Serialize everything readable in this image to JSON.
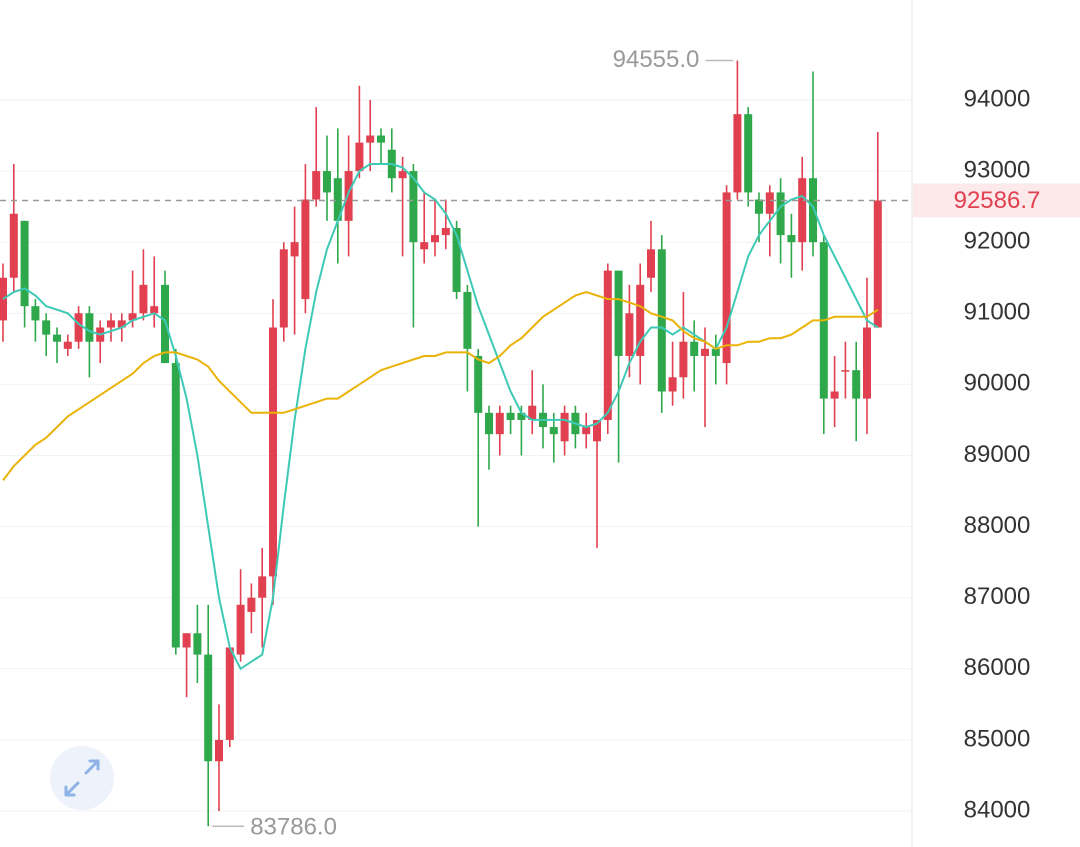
{
  "chart_data": {
    "type": "candlestick",
    "ylim": [
      83494,
      95406
    ],
    "yticks": [
      84000,
      85000,
      86000,
      87000,
      88000,
      89000,
      90000,
      91000,
      92000,
      93000,
      94000
    ],
    "grid": true,
    "up_color": "#e0404f",
    "down_color": "#2ea84a",
    "ohlc": [
      [
        90900,
        91700,
        90600,
        91500
      ],
      [
        91500,
        93100,
        91300,
        92400
      ],
      [
        92300,
        92300,
        90800,
        91100
      ],
      [
        91100,
        91200,
        90600,
        90900
      ],
      [
        90900,
        91000,
        90400,
        90700
      ],
      [
        90700,
        90800,
        90300,
        90600
      ],
      [
        90500,
        90700,
        90400,
        90600
      ],
      [
        90600,
        91100,
        90500,
        91000
      ],
      [
        91000,
        91100,
        90100,
        90600
      ],
      [
        90600,
        90900,
        90300,
        90800
      ],
      [
        90800,
        91000,
        90600,
        90900
      ],
      [
        90800,
        91000,
        90600,
        90900
      ],
      [
        90900,
        91600,
        90800,
        91000
      ],
      [
        91000,
        91900,
        90900,
        91400
      ],
      [
        91000,
        91800,
        90800,
        91100
      ],
      [
        91400,
        91600,
        90300,
        90300
      ],
      [
        90300,
        90500,
        86200,
        86300
      ],
      [
        86300,
        86500,
        85600,
        86500
      ],
      [
        86500,
        86900,
        85800,
        86200
      ],
      [
        86200,
        86900,
        83786,
        84700
      ],
      [
        84700,
        85500,
        84000,
        85000
      ],
      [
        85000,
        86300,
        84900,
        86300
      ],
      [
        86200,
        87400,
        86100,
        86900
      ],
      [
        86800,
        87200,
        86500,
        87000
      ],
      [
        87000,
        87700,
        86300,
        87300
      ],
      [
        87300,
        91200,
        86900,
        90800
      ],
      [
        90800,
        92000,
        90600,
        91900
      ],
      [
        91800,
        92500,
        90700,
        92000
      ],
      [
        91200,
        93100,
        91000,
        92600
      ],
      [
        92600,
        93900,
        92500,
        93000
      ],
      [
        93000,
        93500,
        92300,
        92700
      ],
      [
        92900,
        93600,
        91700,
        92300
      ],
      [
        92300,
        93500,
        91800,
        93000
      ],
      [
        93000,
        94200,
        92900,
        93400
      ],
      [
        93400,
        94000,
        93000,
        93500
      ],
      [
        93500,
        93600,
        93100,
        93400
      ],
      [
        93300,
        93600,
        92700,
        92900
      ],
      [
        92900,
        93200,
        91800,
        93000
      ],
      [
        93000,
        93100,
        90800,
        92000
      ],
      [
        91900,
        92700,
        91700,
        92000
      ],
      [
        92000,
        92600,
        91800,
        92100
      ],
      [
        92100,
        92600,
        91900,
        92200
      ],
      [
        92200,
        92300,
        91200,
        91300
      ],
      [
        91300,
        91400,
        89900,
        90500
      ],
      [
        90400,
        90500,
        88000,
        89600
      ],
      [
        89600,
        89700,
        88800,
        89300
      ],
      [
        89300,
        89700,
        89000,
        89600
      ],
      [
        89600,
        89700,
        89300,
        89500
      ],
      [
        89600,
        89700,
        89000,
        89500
      ],
      [
        89500,
        90200,
        89300,
        89700
      ],
      [
        89600,
        90000,
        89100,
        89400
      ],
      [
        89400,
        89600,
        88900,
        89300
      ],
      [
        89200,
        89700,
        89000,
        89600
      ],
      [
        89600,
        89700,
        89100,
        89300
      ],
      [
        89300,
        89600,
        89100,
        89400
      ],
      [
        89200,
        89500,
        87700,
        89500
      ],
      [
        89500,
        91700,
        89300,
        91600
      ],
      [
        91600,
        91500,
        88900,
        90400
      ],
      [
        90400,
        91400,
        90100,
        91000
      ],
      [
        90400,
        91700,
        90000,
        91400
      ],
      [
        91500,
        92300,
        91300,
        91900
      ],
      [
        91900,
        92100,
        89600,
        89900
      ],
      [
        89900,
        90600,
        89700,
        90100
      ],
      [
        90100,
        91300,
        89800,
        90600
      ],
      [
        90600,
        90900,
        89900,
        90400
      ],
      [
        90400,
        90800,
        89400,
        90500
      ],
      [
        90500,
        90700,
        90000,
        90400
      ],
      [
        90300,
        92800,
        90000,
        92700
      ],
      [
        92700,
        94555,
        92600,
        93800
      ],
      [
        93800,
        93900,
        92500,
        92700
      ],
      [
        92600,
        92700,
        92000,
        92400
      ],
      [
        92400,
        92800,
        91800,
        92700
      ],
      [
        92700,
        92900,
        91700,
        92100
      ],
      [
        92100,
        92400,
        91500,
        92000
      ],
      [
        92000,
        93200,
        91600,
        92900
      ],
      [
        92900,
        94400,
        91800,
        92000
      ],
      [
        92000,
        92100,
        89300,
        89800
      ],
      [
        89800,
        90400,
        89400,
        89900
      ],
      [
        90200,
        90600,
        89800,
        90200
      ],
      [
        90200,
        90600,
        89200,
        89800
      ],
      [
        89800,
        91500,
        89300,
        90800
      ],
      [
        90800,
        93550,
        90800,
        92586.7
      ]
    ],
    "lines": [
      {
        "color": "#3ec9b6",
        "values": [
          91200,
          91300,
          91350,
          91250,
          91100,
          91050,
          91000,
          90850,
          90750,
          90700,
          90750,
          90800,
          90900,
          90950,
          91000,
          90900,
          90400,
          89800,
          89000,
          88000,
          87000,
          86300,
          86000,
          86100,
          86200,
          87000,
          88300,
          89500,
          90500,
          91300,
          91900,
          92300,
          92700,
          93000,
          93100,
          93100,
          93100,
          93050,
          92900,
          92700,
          92600,
          92400,
          92100,
          91600,
          91100,
          90700,
          90300,
          89900,
          89600,
          89500,
          89500,
          89500,
          89500,
          89450,
          89400,
          89450,
          89600,
          89900,
          90300,
          90600,
          90800,
          90800,
          90700,
          90800,
          90700,
          90600,
          90500,
          90800,
          91300,
          91800,
          92100,
          92300,
          92500,
          92600,
          92650,
          92500,
          92100,
          91800,
          91500,
          91200,
          90900,
          90800
        ]
      },
      {
        "color": "#eab308",
        "values": [
          88650,
          88850,
          89000,
          89150,
          89250,
          89400,
          89550,
          89650,
          89750,
          89850,
          89950,
          90050,
          90150,
          90300,
          90400,
          90450,
          90450,
          90400,
          90350,
          90250,
          90050,
          89900,
          89750,
          89600,
          89600,
          89600,
          89600,
          89650,
          89700,
          89750,
          89800,
          89800,
          89900,
          90000,
          90100,
          90200,
          90250,
          90300,
          90350,
          90400,
          90400,
          90450,
          90450,
          90450,
          90350,
          90300,
          90400,
          90550,
          90650,
          90800,
          90950,
          91050,
          91150,
          91250,
          91300,
          91250,
          91200,
          91200,
          91150,
          91100,
          91000,
          90950,
          90900,
          90750,
          90650,
          90600,
          90500,
          90550,
          90550,
          90600,
          90600,
          90650,
          90650,
          90700,
          90800,
          90900,
          90900,
          90950,
          90950,
          90950,
          90950,
          91050
        ]
      }
    ],
    "high_label": {
      "value": 94555,
      "label": "94555.0"
    },
    "low_label": {
      "value": 83786,
      "label": "83786.0"
    },
    "last_price": 92586.7
  }
}
